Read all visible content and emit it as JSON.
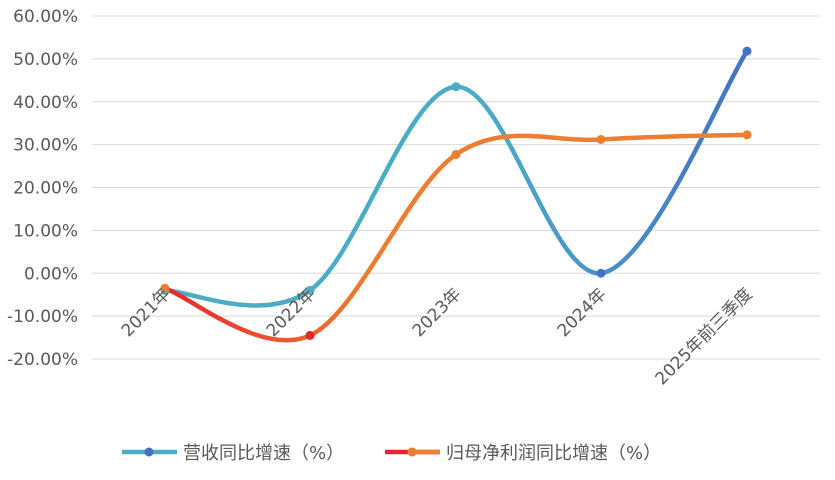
{
  "chart_data": {
    "type": "line",
    "title": "",
    "xlabel": "",
    "ylabel": "",
    "categories": [
      "2021年",
      "2022年",
      "2023年",
      "2024年",
      "2025年前三季度"
    ],
    "y_ticks": [
      "60.00%",
      "50.00%",
      "40.00%",
      "30.00%",
      "20.00%",
      "10.00%",
      "0.00%",
      "-10.00%",
      "-20.00%"
    ],
    "ylim": [
      -20,
      60
    ],
    "y_unit": "%",
    "grid": true,
    "smooth": true,
    "legend_position": "bottom",
    "series": [
      {
        "name": "营收同比增速（%）",
        "values": [
          -4.0,
          -4.0,
          43.5,
          0.0,
          51.8
        ],
        "color_start": "#4BACC6",
        "color_end": "#4472C4"
      },
      {
        "name": "归母净利润同比增速（%）",
        "values": [
          -3.5,
          -14.5,
          27.7,
          31.2,
          32.3
        ],
        "color_start": "#E8262D",
        "color_end": "#ED7D31"
      }
    ]
  }
}
